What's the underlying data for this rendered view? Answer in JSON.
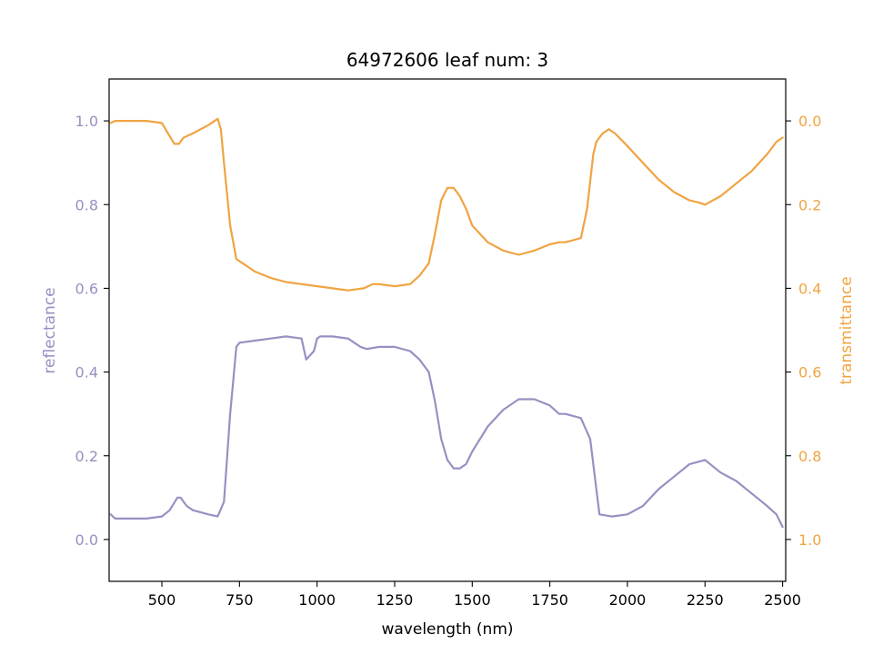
{
  "chart_data": {
    "type": "line",
    "title": "64972606 leaf num: 3",
    "xlabel": "wavelength (nm)",
    "xlim": [
      330,
      2510
    ],
    "xticks": [
      500,
      750,
      1000,
      1250,
      1500,
      1750,
      2000,
      2250,
      2500
    ],
    "left_axis": {
      "label": "reflectance",
      "color": "#9890c2",
      "ylim": [
        -0.1,
        1.1
      ],
      "ticks": [
        0.0,
        0.2,
        0.4,
        0.6,
        0.8,
        1.0
      ],
      "tick_labels": [
        "0.0",
        "0.2",
        "0.4",
        "0.6",
        "0.8",
        "1.0"
      ]
    },
    "right_axis": {
      "label": "transmittance",
      "color": "#f0a442",
      "inverted": true,
      "ylim": [
        1.1,
        -0.1
      ],
      "ticks": [
        0.0,
        0.2,
        0.4,
        0.6,
        0.8,
        1.0
      ],
      "tick_labels": [
        "0.0",
        "0.2",
        "0.4",
        "0.6",
        "0.8",
        "1.0"
      ]
    },
    "grid": false,
    "series": [
      {
        "axis": "left",
        "color": "#9890c2",
        "x": [
          335,
          350,
          400,
          450,
          500,
          525,
          550,
          560,
          580,
          600,
          650,
          680,
          700,
          720,
          740,
          750,
          800,
          850,
          900,
          950,
          965,
          990,
          1000,
          1010,
          1050,
          1100,
          1140,
          1160,
          1200,
          1250,
          1300,
          1330,
          1360,
          1380,
          1400,
          1420,
          1440,
          1460,
          1480,
          1500,
          1550,
          1600,
          1650,
          1700,
          1750,
          1780,
          1800,
          1850,
          1880,
          1900,
          1910,
          1950,
          2000,
          2050,
          2100,
          2150,
          2200,
          2250,
          2300,
          2350,
          2400,
          2450,
          2480,
          2500
        ],
        "y": [
          0.06,
          0.05,
          0.05,
          0.05,
          0.055,
          0.07,
          0.1,
          0.1,
          0.08,
          0.07,
          0.06,
          0.055,
          0.09,
          0.3,
          0.46,
          0.47,
          0.475,
          0.48,
          0.485,
          0.48,
          0.43,
          0.45,
          0.48,
          0.485,
          0.485,
          0.48,
          0.46,
          0.455,
          0.46,
          0.46,
          0.45,
          0.43,
          0.4,
          0.33,
          0.24,
          0.19,
          0.17,
          0.17,
          0.18,
          0.21,
          0.27,
          0.31,
          0.335,
          0.335,
          0.32,
          0.3,
          0.3,
          0.29,
          0.24,
          0.12,
          0.06,
          0.055,
          0.06,
          0.08,
          0.12,
          0.15,
          0.18,
          0.19,
          0.16,
          0.14,
          0.11,
          0.08,
          0.06,
          0.03
        ]
      },
      {
        "axis": "right",
        "color": "#f0a442",
        "x": [
          335,
          350,
          400,
          450,
          500,
          520,
          540,
          555,
          570,
          600,
          650,
          680,
          690,
          700,
          720,
          740,
          760,
          800,
          850,
          900,
          950,
          1000,
          1050,
          1100,
          1150,
          1180,
          1200,
          1250,
          1300,
          1330,
          1360,
          1380,
          1400,
          1420,
          1440,
          1460,
          1480,
          1500,
          1550,
          1600,
          1650,
          1700,
          1750,
          1780,
          1800,
          1850,
          1870,
          1890,
          1900,
          1920,
          1940,
          1960,
          2000,
          2050,
          2100,
          2150,
          2200,
          2230,
          2250,
          2300,
          2350,
          2400,
          2450,
          2480,
          2500
        ],
        "y": [
          0.005,
          0.0,
          0.0,
          0.0,
          0.005,
          0.03,
          0.055,
          0.055,
          0.04,
          0.03,
          0.01,
          -0.005,
          0.02,
          0.1,
          0.25,
          0.33,
          0.34,
          0.36,
          0.375,
          0.385,
          0.39,
          0.395,
          0.4,
          0.405,
          0.4,
          0.39,
          0.39,
          0.395,
          0.39,
          0.37,
          0.34,
          0.27,
          0.19,
          0.16,
          0.16,
          0.18,
          0.21,
          0.25,
          0.29,
          0.31,
          0.32,
          0.31,
          0.295,
          0.29,
          0.29,
          0.28,
          0.21,
          0.08,
          0.05,
          0.03,
          0.02,
          0.03,
          0.06,
          0.1,
          0.14,
          0.17,
          0.19,
          0.195,
          0.2,
          0.18,
          0.15,
          0.12,
          0.08,
          0.05,
          0.04
        ]
      }
    ]
  }
}
